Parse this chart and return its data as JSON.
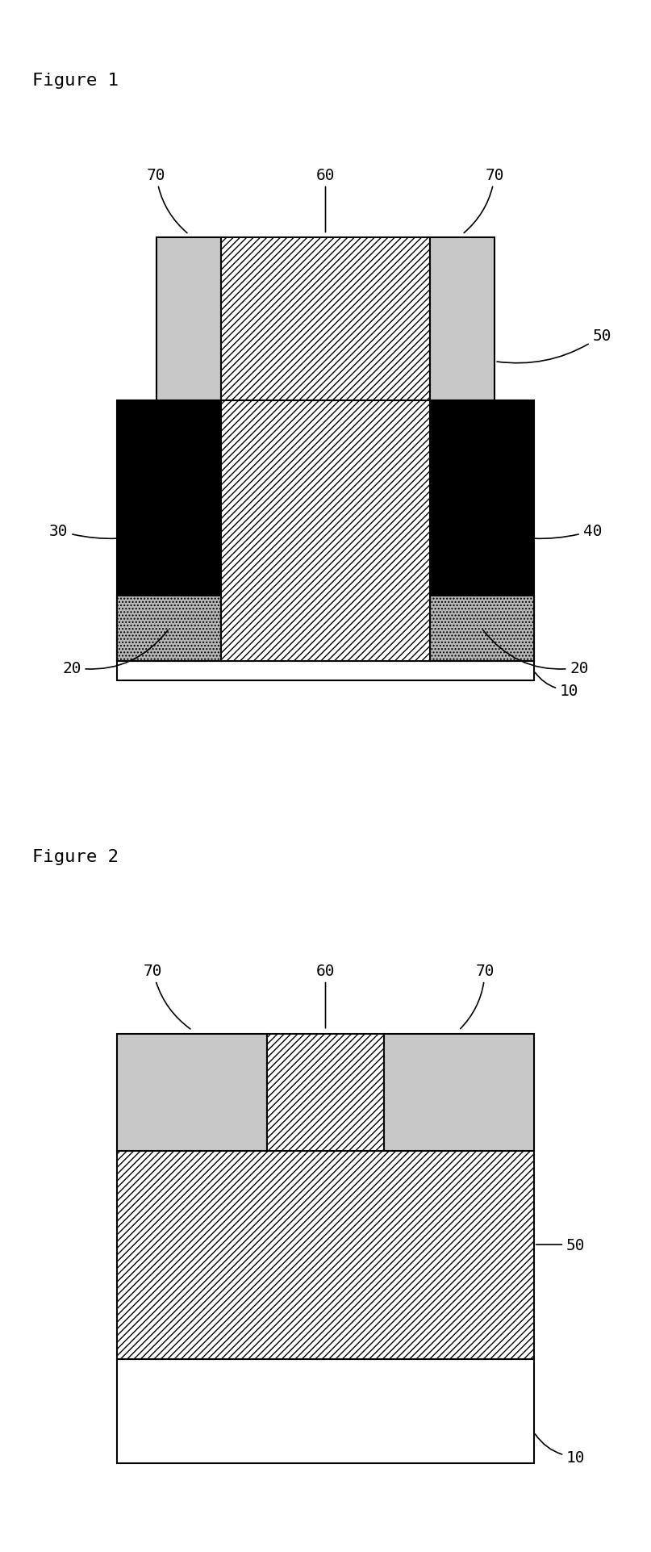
{
  "fig1_title": "Figure 1",
  "fig2_title": "Figure 2",
  "hatch_diagonal": "////",
  "hatch_dots": "....",
  "color_black": "#000000",
  "color_white": "#ffffff",
  "color_light_gray": "#c0c0c0",
  "color_gray20": "#b0b0b0",
  "color_substrate": "#e8e8e8",
  "background": "#ffffff",
  "label_fontsize": 14,
  "title_fontsize": 16
}
